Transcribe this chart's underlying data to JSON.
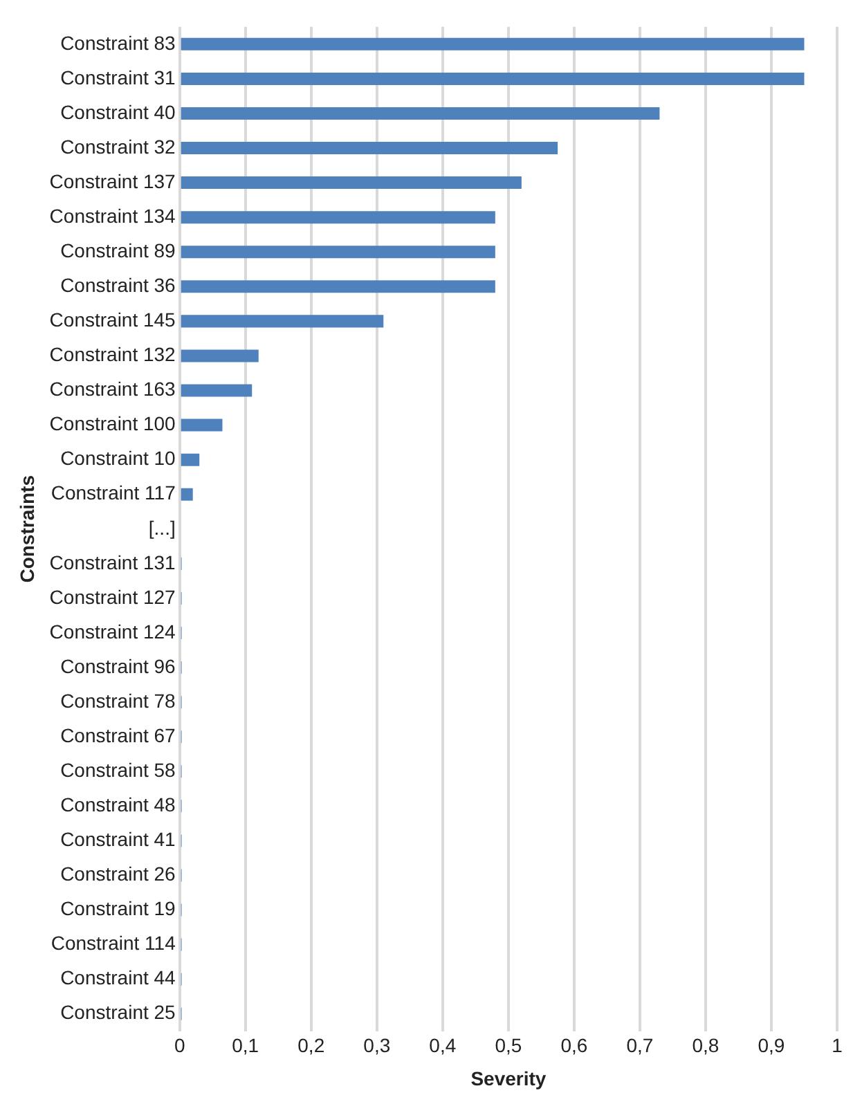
{
  "chart_data": {
    "type": "bar",
    "orientation": "horizontal",
    "xlabel": "Severity",
    "ylabel": "Constraints",
    "categories": [
      "Constraint 83",
      "Constraint 31",
      "Constraint 40",
      "Constraint 32",
      "Constraint 137",
      "Constraint 134",
      "Constraint 89",
      "Constraint 36",
      "Constraint 145",
      "Constraint 132",
      "Constraint 163",
      "Constraint 100",
      "Constraint 10",
      "Constraint 117",
      "[...]",
      "Constraint 131",
      "Constraint 127",
      "Constraint 124",
      "Constraint 96",
      "Constraint 78",
      "Constraint 67",
      "Constraint 58",
      "Constraint 48",
      "Constraint 41",
      "Constraint 26",
      "Constraint 19",
      "Constraint 114",
      "Constraint 44",
      "Constraint 25"
    ],
    "values": [
      0.95,
      0.95,
      0.73,
      0.575,
      0.52,
      0.48,
      0.48,
      0.48,
      0.31,
      0.12,
      0.11,
      0.065,
      0.03,
      0.02,
      null,
      0.003,
      0.003,
      0.003,
      0.003,
      0.003,
      0.003,
      0.003,
      0.003,
      0.003,
      0.003,
      0.003,
      0.003,
      0.003,
      0.003
    ],
    "color": "#4f81bd",
    "xlim": [
      0,
      1
    ],
    "xticks": [
      0,
      {
        "value": 0.1,
        "label": "0,1"
      },
      {
        "value": 0.2,
        "label": "0,2"
      },
      {
        "value": 0.3,
        "label": "0,3"
      },
      {
        "value": 0.4,
        "label": "0,4"
      },
      {
        "value": 0.5,
        "label": "0,5"
      },
      {
        "value": 0.6,
        "label": "0,6"
      },
      {
        "value": 0.7,
        "label": "0,7"
      },
      {
        "value": 0.8,
        "label": "0,8"
      },
      {
        "value": 0.9,
        "label": "0,9"
      },
      1
    ],
    "grid": "x",
    "legend": false
  }
}
